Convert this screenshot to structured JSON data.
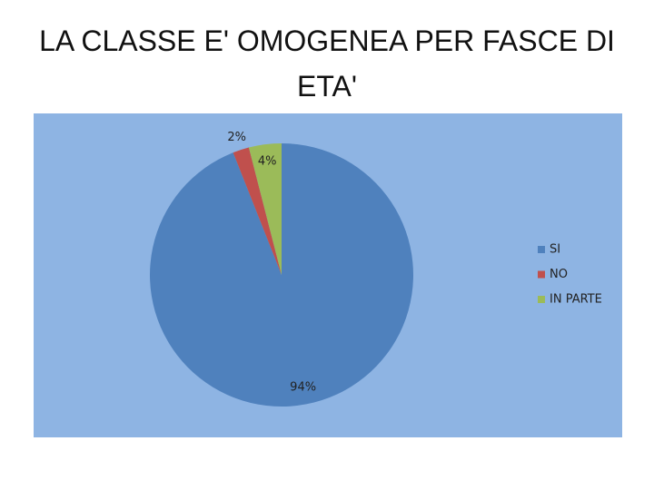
{
  "chart_data": {
    "type": "pie",
    "title": "LA CLASSE E' OMOGENEA PER FASCE DI ETA'",
    "categories": [
      "SI",
      "NO",
      "IN PARTE"
    ],
    "values": [
      94,
      2,
      4
    ],
    "value_labels": [
      "94%",
      "2%",
      "4%"
    ],
    "colors": [
      "#4f81bd",
      "#c0504d",
      "#9bbb59"
    ],
    "legend": "right"
  }
}
